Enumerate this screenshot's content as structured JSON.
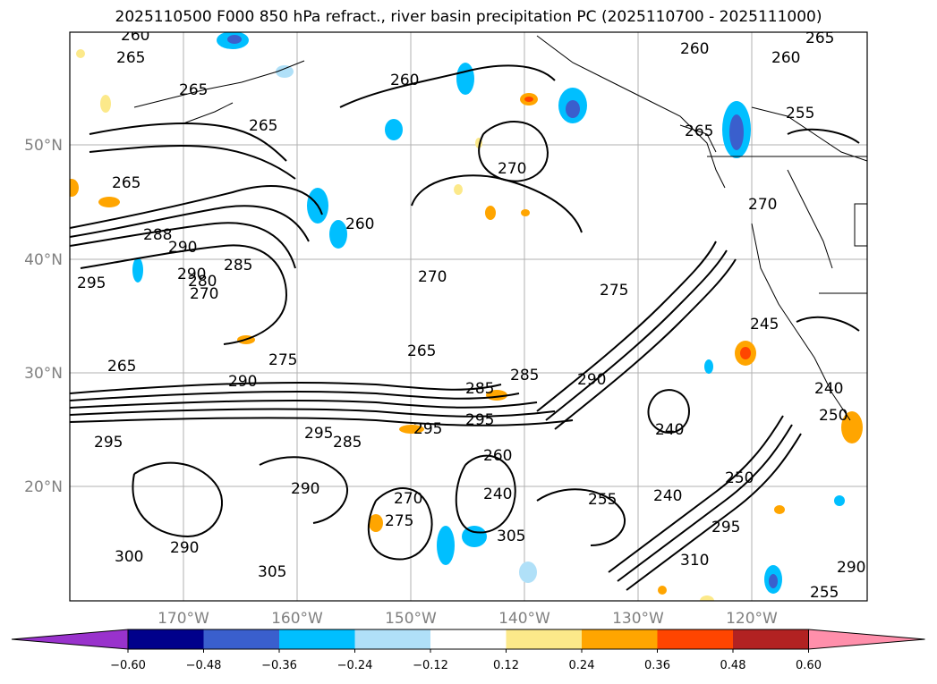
{
  "title": "2025110500 F000 850 hPa refract., river basin precipitation PC (2025110700 - 2025111000)",
  "map": {
    "lat_labels": [
      "50°N",
      "40°N",
      "30°N",
      "20°N"
    ],
    "lon_labels": [
      "170°W",
      "160°W",
      "150°W",
      "140°W",
      "130°W",
      "120°W"
    ]
  },
  "colorbar": {
    "ticks": [
      "−0.60",
      "−0.48",
      "−0.36",
      "−0.24",
      "−0.12",
      "0.12",
      "0.24",
      "0.36",
      "0.48",
      "0.60"
    ],
    "colors": [
      "#9932cc",
      "#00008b",
      "#3a5fcd",
      "#00bfff",
      "#b0e0f8",
      "#ffffff",
      "#fce98a",
      "#ffa500",
      "#ff4500",
      "#b22222",
      "#ff8fab"
    ]
  },
  "contour_labels": [
    "260",
    "265",
    "265",
    "265",
    "260",
    "260",
    "260",
    "265",
    "255",
    "265",
    "270",
    "270",
    "260",
    "265",
    "288",
    "290",
    "285",
    "290",
    "295",
    "280",
    "270",
    "270",
    "275",
    "285",
    "265",
    "265",
    "275",
    "240",
    "290",
    "290",
    "295",
    "295",
    "290",
    "285",
    "285",
    "295",
    "295",
    "260",
    "240",
    "250",
    "255",
    "240",
    "305",
    "310",
    "300",
    "290",
    "305",
    "270",
    "275",
    "245",
    "295",
    "290",
    "250",
    "255",
    "240"
  ]
}
